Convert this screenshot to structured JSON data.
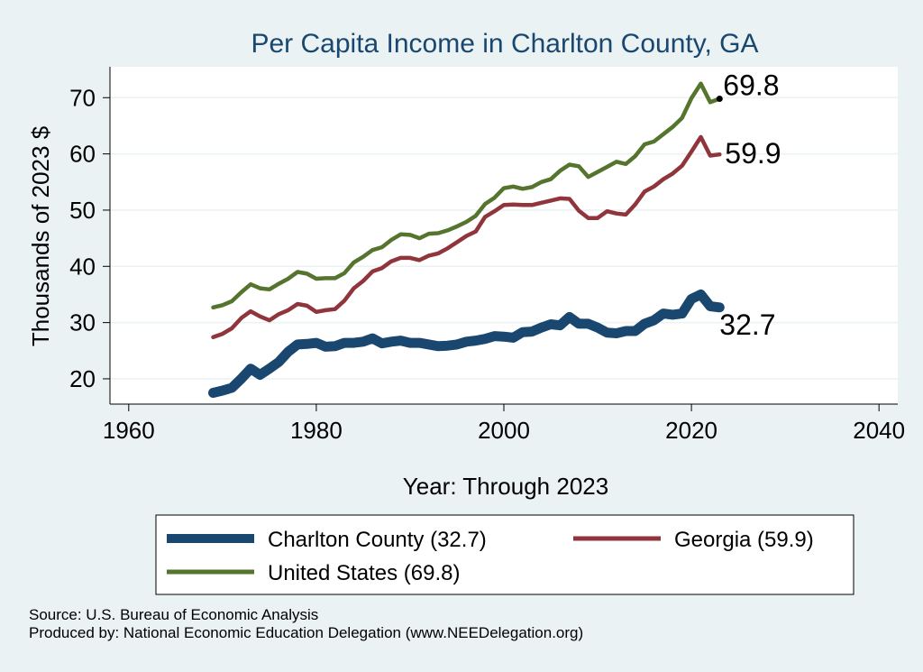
{
  "chart_data": {
    "type": "line",
    "title": "Per Capita Income in Charlton County, GA",
    "xlabel": "Year: Through 2023",
    "ylabel": "Thousands of 2023 $",
    "xlim": [
      1958,
      2042
    ],
    "ylim": [
      15.5,
      75.5
    ],
    "xticks": [
      1960,
      1980,
      2000,
      2020,
      2040
    ],
    "yticks": [
      20,
      30,
      40,
      50,
      60,
      70
    ],
    "grid": true,
    "legend_position": "bottom",
    "series": [
      {
        "name": "Charlton County",
        "legend_label": "Charlton County (32.7)",
        "end_label": "32.7",
        "color": "#1A476F",
        "x": [
          1969,
          1970,
          1971,
          1972,
          1973,
          1974,
          1975,
          1976,
          1977,
          1978,
          1979,
          1980,
          1981,
          1982,
          1983,
          1984,
          1985,
          1986,
          1987,
          1988,
          1989,
          1990,
          1991,
          1992,
          1993,
          1994,
          1995,
          1996,
          1997,
          1998,
          1999,
          2000,
          2001,
          2002,
          2003,
          2004,
          2005,
          2006,
          2007,
          2008,
          2009,
          2010,
          2011,
          2012,
          2013,
          2014,
          2015,
          2016,
          2017,
          2018,
          2019,
          2020,
          2021,
          2022,
          2023
        ],
        "y": [
          17.5,
          17.9,
          18.4,
          20.0,
          21.8,
          20.7,
          21.8,
          23.0,
          24.8,
          26.1,
          26.2,
          26.4,
          25.7,
          25.8,
          26.4,
          26.4,
          26.6,
          27.2,
          26.3,
          26.6,
          26.8,
          26.4,
          26.4,
          26.1,
          25.8,
          25.9,
          26.1,
          26.6,
          26.8,
          27.1,
          27.6,
          27.5,
          27.3,
          28.3,
          28.4,
          29.1,
          29.7,
          29.5,
          31.0,
          29.8,
          29.8,
          29.1,
          28.2,
          28.1,
          28.5,
          28.5,
          29.8,
          30.4,
          31.6,
          31.4,
          31.6,
          34.2,
          35.0,
          32.9,
          32.7
        ]
      },
      {
        "name": "Georgia",
        "legend_label": "Georgia (59.9)",
        "end_label": "59.9",
        "color": "#90353B",
        "x": [
          1969,
          1970,
          1971,
          1972,
          1973,
          1974,
          1975,
          1976,
          1977,
          1978,
          1979,
          1980,
          1981,
          1982,
          1983,
          1984,
          1985,
          1986,
          1987,
          1988,
          1989,
          1990,
          1991,
          1992,
          1993,
          1994,
          1995,
          1996,
          1997,
          1998,
          1999,
          2000,
          2001,
          2002,
          2003,
          2004,
          2005,
          2006,
          2007,
          2008,
          2009,
          2010,
          2011,
          2012,
          2013,
          2014,
          2015,
          2016,
          2017,
          2018,
          2019,
          2020,
          2021,
          2022,
          2023
        ],
        "y": [
          27.4,
          28.0,
          29.0,
          30.8,
          32.0,
          31.1,
          30.4,
          31.5,
          32.2,
          33.3,
          33.0,
          31.9,
          32.2,
          32.4,
          33.9,
          36.1,
          37.4,
          39.1,
          39.7,
          40.9,
          41.5,
          41.5,
          41.1,
          41.9,
          42.3,
          43.2,
          44.3,
          45.4,
          46.2,
          48.8,
          49.8,
          50.9,
          51.0,
          50.9,
          50.9,
          51.3,
          51.7,
          52.1,
          52.0,
          49.9,
          48.6,
          48.6,
          49.8,
          49.4,
          49.2,
          51.0,
          53.3,
          54.2,
          55.5,
          56.5,
          57.9,
          60.4,
          63.0,
          59.7,
          59.9
        ]
      },
      {
        "name": "United States",
        "legend_label": "United States (69.8)",
        "end_label": "69.8",
        "color": "#55752F",
        "x": [
          1969,
          1970,
          1971,
          1972,
          1973,
          1974,
          1975,
          1976,
          1977,
          1978,
          1979,
          1980,
          1981,
          1982,
          1983,
          1984,
          1985,
          1986,
          1987,
          1988,
          1989,
          1990,
          1991,
          1992,
          1993,
          1994,
          1995,
          1996,
          1997,
          1998,
          1999,
          2000,
          2001,
          2002,
          2003,
          2004,
          2005,
          2006,
          2007,
          2008,
          2009,
          2010,
          2011,
          2012,
          2013,
          2014,
          2015,
          2016,
          2017,
          2018,
          2019,
          2020,
          2021,
          2022,
          2023
        ],
        "y": [
          32.7,
          33.1,
          33.8,
          35.4,
          36.8,
          36.1,
          35.9,
          36.9,
          37.8,
          39.0,
          38.7,
          37.8,
          37.9,
          37.9,
          38.8,
          40.7,
          41.7,
          42.9,
          43.4,
          44.7,
          45.7,
          45.6,
          45.0,
          45.8,
          45.9,
          46.4,
          47.1,
          47.9,
          49.0,
          51.1,
          52.2,
          53.9,
          54.2,
          53.8,
          54.1,
          55.0,
          55.5,
          57.0,
          58.1,
          57.8,
          55.9,
          56.8,
          57.7,
          58.6,
          58.2,
          59.6,
          61.7,
          62.2,
          63.5,
          64.8,
          66.4,
          69.9,
          72.5,
          69.2,
          69.8
        ]
      }
    ]
  },
  "source_line": "Source: U.S. Bureau of Economic Analysis",
  "produced_line": "Produced by: National Economic Education Delegation (www.NEEDelegation.org)"
}
